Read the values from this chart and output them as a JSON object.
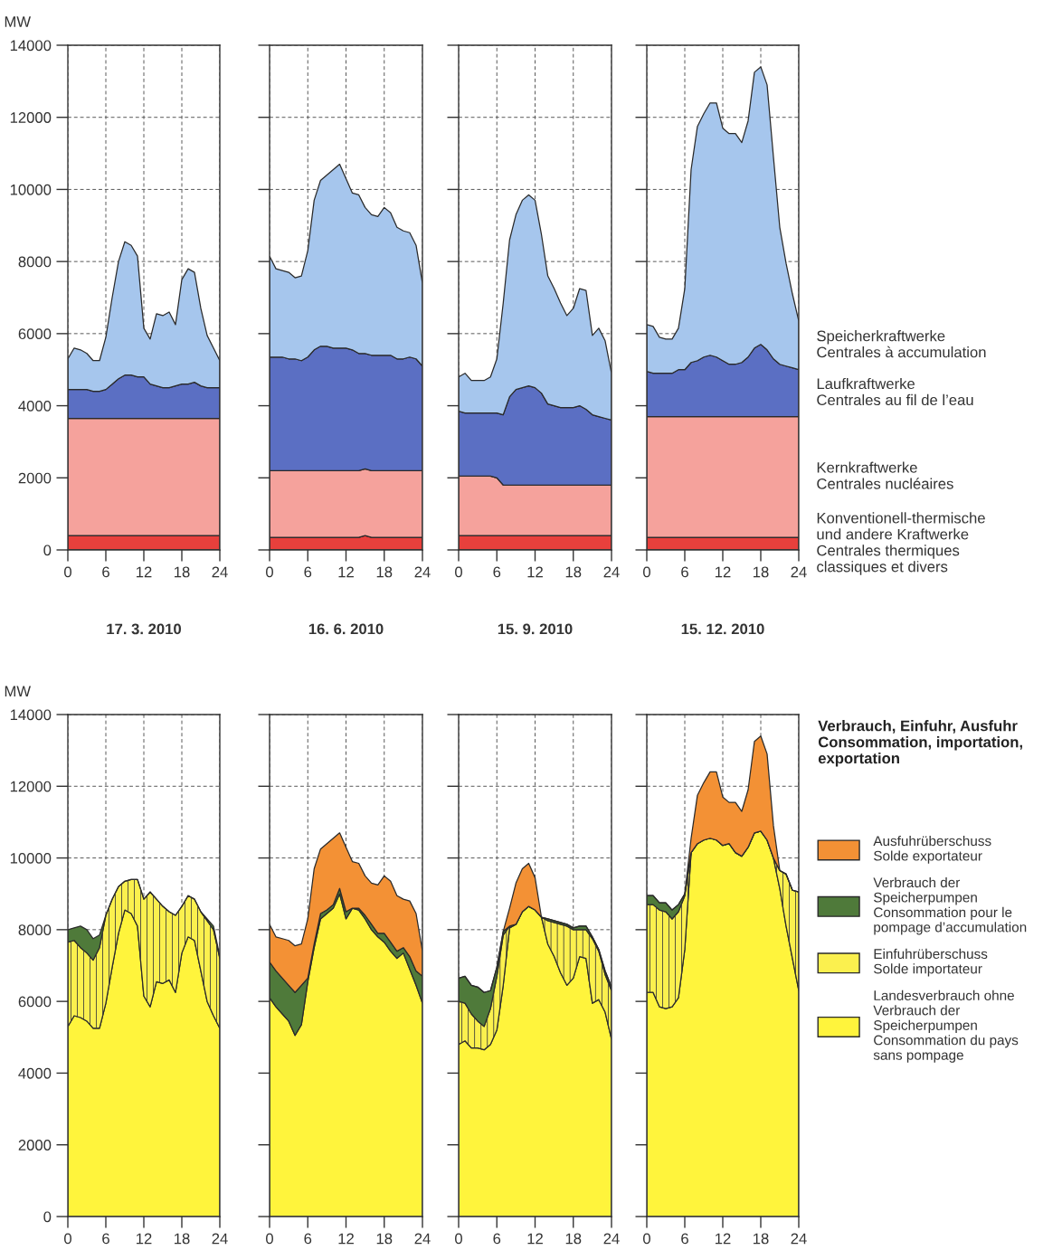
{
  "chart_data": [
    {
      "type": "area",
      "stacked": true,
      "ylabel": "MW",
      "x": [
        0,
        1,
        2,
        3,
        4,
        5,
        6,
        7,
        8,
        9,
        10,
        11,
        12,
        13,
        14,
        15,
        16,
        17,
        18,
        19,
        20,
        21,
        22,
        23,
        24
      ],
      "xlim": [
        0,
        24
      ],
      "xticks": [
        0,
        6,
        12,
        18,
        24
      ],
      "ylim": [
        0,
        14000
      ],
      "yticks": [
        0,
        2000,
        4000,
        6000,
        8000,
        10000,
        12000,
        14000
      ],
      "grid": true,
      "series": [
        {
          "color": "#e8403c",
          "values": [
            400,
            400,
            400,
            400,
            400,
            400,
            400,
            400,
            400,
            400,
            400,
            400,
            400,
            400,
            400,
            400,
            400,
            400,
            400,
            400,
            400,
            400,
            400,
            400,
            400
          ]
        },
        {
          "color": "#f5a29c",
          "values": [
            3250,
            3250,
            3250,
            3250,
            3250,
            3250,
            3250,
            3250,
            3250,
            3250,
            3250,
            3250,
            3250,
            3250,
            3250,
            3250,
            3250,
            3250,
            3250,
            3250,
            3250,
            3250,
            3250,
            3250,
            3250
          ]
        },
        {
          "color": "#5b6fc3",
          "values": [
            800,
            800,
            800,
            800,
            750,
            750,
            800,
            950,
            1100,
            1200,
            1200,
            1150,
            1150,
            950,
            900,
            850,
            850,
            900,
            950,
            950,
            1000,
            900,
            850,
            850,
            850
          ]
        },
        {
          "color": "#a6c6ed",
          "values": [
            850,
            1150,
            1100,
            1000,
            850,
            850,
            1450,
            2400,
            3250,
            3700,
            3600,
            3350,
            1350,
            1250,
            2000,
            2000,
            2100,
            1700,
            2900,
            3200,
            3050,
            2150,
            1450,
            1100,
            750
          ]
        }
      ]
    },
    {
      "type": "area",
      "stacked": true,
      "tick_labels": "x",
      "x": [
        0,
        1,
        2,
        3,
        4,
        5,
        6,
        7,
        8,
        9,
        10,
        11,
        12,
        13,
        14,
        15,
        16,
        17,
        18,
        19,
        20,
        21,
        22,
        23,
        24
      ],
      "xlim": [
        0,
        24
      ],
      "xticks": [
        0,
        6,
        12,
        18,
        24
      ],
      "ylim": [
        0,
        14000
      ],
      "yticks": [
        0,
        2000,
        4000,
        6000,
        8000,
        10000,
        12000,
        14000
      ],
      "grid": true,
      "series": [
        {
          "color": "#e8403c",
          "values": [
            350,
            350,
            350,
            350,
            350,
            350,
            350,
            350,
            350,
            350,
            350,
            350,
            350,
            350,
            350,
            400,
            350,
            350,
            350,
            350,
            350,
            350,
            350,
            350,
            350
          ]
        },
        {
          "color": "#f5a29c",
          "values": [
            1850,
            1850,
            1850,
            1850,
            1850,
            1850,
            1850,
            1850,
            1850,
            1850,
            1850,
            1850,
            1850,
            1850,
            1850,
            1850,
            1850,
            1850,
            1850,
            1850,
            1850,
            1850,
            1850,
            1850,
            1850
          ]
        },
        {
          "color": "#5b6fc3",
          "values": [
            3150,
            3150,
            3150,
            3100,
            3100,
            3050,
            3150,
            3350,
            3450,
            3450,
            3400,
            3400,
            3400,
            3350,
            3250,
            3200,
            3200,
            3200,
            3200,
            3200,
            3100,
            3100,
            3150,
            3100,
            2900
          ]
        },
        {
          "color": "#a6c6ed",
          "values": [
            2800,
            2450,
            2400,
            2400,
            2250,
            2350,
            2950,
            4150,
            4600,
            4750,
            4950,
            5100,
            4700,
            4350,
            4400,
            4050,
            3900,
            3850,
            4100,
            3950,
            3650,
            3550,
            3450,
            3150,
            2300
          ]
        }
      ]
    },
    {
      "type": "area",
      "stacked": true,
      "tick_labels": "x",
      "x": [
        0,
        1,
        2,
        3,
        4,
        5,
        6,
        7,
        8,
        9,
        10,
        11,
        12,
        13,
        14,
        15,
        16,
        17,
        18,
        19,
        20,
        21,
        22,
        23,
        24
      ],
      "xlim": [
        0,
        24
      ],
      "xticks": [
        0,
        6,
        12,
        18,
        24
      ],
      "ylim": [
        0,
        14000
      ],
      "yticks": [
        0,
        2000,
        4000,
        6000,
        8000,
        10000,
        12000,
        14000
      ],
      "grid": true,
      "series": [
        {
          "color": "#e8403c",
          "values": [
            400,
            400,
            400,
            400,
            400,
            400,
            400,
            400,
            400,
            400,
            400,
            400,
            400,
            400,
            400,
            400,
            400,
            400,
            400,
            400,
            400,
            400,
            400,
            400,
            400
          ]
        },
        {
          "color": "#f5a29c",
          "values": [
            1650,
            1650,
            1650,
            1650,
            1650,
            1650,
            1600,
            1400,
            1400,
            1400,
            1400,
            1400,
            1400,
            1400,
            1400,
            1400,
            1400,
            1400,
            1400,
            1400,
            1400,
            1400,
            1400,
            1400,
            1400
          ]
        },
        {
          "color": "#5b6fc3",
          "values": [
            1800,
            1750,
            1750,
            1750,
            1750,
            1750,
            1800,
            1950,
            2450,
            2650,
            2700,
            2750,
            2700,
            2550,
            2250,
            2200,
            2150,
            2150,
            2150,
            2200,
            2100,
            1950,
            1900,
            1850,
            1800
          ]
        },
        {
          "color": "#a6c6ed",
          "values": [
            950,
            1100,
            900,
            900,
            900,
            1000,
            1500,
            3100,
            4350,
            4850,
            5200,
            5300,
            5200,
            4400,
            3550,
            3250,
            2900,
            2550,
            2750,
            3250,
            3300,
            2200,
            2450,
            2150,
            1300
          ]
        }
      ]
    },
    {
      "type": "area",
      "stacked": true,
      "tick_labels": "x",
      "x": [
        0,
        1,
        2,
        3,
        4,
        5,
        6,
        7,
        8,
        9,
        10,
        11,
        12,
        13,
        14,
        15,
        16,
        17,
        18,
        19,
        20,
        21,
        22,
        23,
        24
      ],
      "xlim": [
        0,
        24
      ],
      "xticks": [
        0,
        6,
        12,
        18,
        24
      ],
      "ylim": [
        0,
        14000
      ],
      "yticks": [
        0,
        2000,
        4000,
        6000,
        8000,
        10000,
        12000,
        14000
      ],
      "grid": true,
      "series": [
        {
          "name": "Konventionell-thermische\nund andere Kraftwerke\nCentrales thermiques\nclassiques et divers",
          "color": "#e8403c",
          "values": [
            350,
            350,
            350,
            350,
            350,
            350,
            350,
            350,
            350,
            350,
            350,
            350,
            350,
            350,
            350,
            350,
            350,
            350,
            350,
            350,
            350,
            350,
            350,
            350,
            350
          ]
        },
        {
          "name": "Kernkraftwerke\nCentrales nucléaires",
          "color": "#f5a29c",
          "values": [
            3350,
            3350,
            3350,
            3350,
            3350,
            3350,
            3350,
            3350,
            3350,
            3350,
            3350,
            3350,
            3350,
            3350,
            3350,
            3350,
            3350,
            3350,
            3350,
            3350,
            3350,
            3350,
            3350,
            3350,
            3350
          ]
        },
        {
          "name": "Laufkraftwerke\nCentrales au fil de l’eau",
          "color": "#5b6fc3",
          "values": [
            1250,
            1200,
            1200,
            1200,
            1200,
            1300,
            1300,
            1500,
            1550,
            1650,
            1700,
            1650,
            1550,
            1450,
            1450,
            1500,
            1650,
            1900,
            2000,
            1850,
            1600,
            1450,
            1400,
            1350,
            1300
          ]
        },
        {
          "name": "Speicherkraftwerke\nCentrales à accumulation",
          "color": "#a6c6ed",
          "values": [
            1300,
            1300,
            1000,
            950,
            950,
            1150,
            2250,
            5350,
            6500,
            6750,
            7000,
            7050,
            6450,
            6400,
            6400,
            6100,
            6550,
            7650,
            7700,
            7350,
            5600,
            3800,
            2850,
            2050,
            1350
          ]
        }
      ]
    },
    {
      "type": "area",
      "stacked": true,
      "title": "17. 3. 2010",
      "ylabel": "MW",
      "x": [
        0,
        1,
        2,
        3,
        4,
        5,
        6,
        7,
        8,
        9,
        10,
        11,
        12,
        13,
        14,
        15,
        16,
        17,
        18,
        19,
        20,
        21,
        22,
        23,
        24
      ],
      "xlim": [
        0,
        24
      ],
      "xticks": [
        0,
        6,
        12,
        18,
        24
      ],
      "ylim": [
        0,
        14000
      ],
      "yticks": [
        0,
        2000,
        4000,
        6000,
        8000,
        10000,
        12000,
        14000
      ],
      "grid": true,
      "series": [
        {
          "color": "#fff43c",
          "values": [
            5300,
            5600,
            5550,
            5450,
            5250,
            5250,
            5950,
            6950,
            7900,
            8550,
            8450,
            8100,
            6150,
            5850,
            6550,
            6500,
            6600,
            6250,
            7350,
            7800,
            7700,
            6850,
            6000,
            5600,
            5250
          ]
        },
        {
          "color": "#fbf04e",
          "values": [
            2350,
            2100,
            1950,
            1900,
            1900,
            2250,
            2450,
            1900,
            1300,
            800,
            950,
            1300,
            2700,
            3200,
            2300,
            2150,
            1900,
            2150,
            1300,
            1150,
            1150,
            1650,
            2250,
            2400,
            1950
          ]
        },
        {
          "color": "#4f7a3a",
          "values": [
            350,
            350,
            600,
            650,
            600,
            350,
            0,
            0,
            0,
            0,
            0,
            0,
            0,
            0,
            0,
            0,
            0,
            0,
            0,
            0,
            0,
            0,
            50,
            100,
            50
          ]
        }
      ]
    },
    {
      "type": "area",
      "stacked": true,
      "title": "16. 6. 2010",
      "tick_labels": "x",
      "x": [
        0,
        1,
        2,
        3,
        4,
        5,
        6,
        7,
        8,
        9,
        10,
        11,
        12,
        13,
        14,
        15,
        16,
        17,
        18,
        19,
        20,
        21,
        22,
        23,
        24
      ],
      "xlim": [
        0,
        24
      ],
      "xticks": [
        0,
        6,
        12,
        18,
        24
      ],
      "ylim": [
        0,
        14000
      ],
      "yticks": [
        0,
        2000,
        4000,
        6000,
        8000,
        10000,
        12000,
        14000
      ],
      "grid": true,
      "series": [
        {
          "color": "#fff43c",
          "values": [
            6100,
            5850,
            5650,
            5450,
            5050,
            5350,
            6550,
            7500,
            8300,
            8450,
            8600,
            9000,
            8300,
            8600,
            8550,
            8300,
            8000,
            7800,
            7650,
            7400,
            7200,
            7350,
            6900,
            6450,
            5950
          ]
        },
        {
          "color": "#4f7a3a",
          "values": [
            1000,
            1000,
            1000,
            1000,
            1200,
            1100,
            100,
            100,
            150,
            100,
            100,
            150,
            200,
            0,
            50,
            100,
            150,
            100,
            250,
            250,
            200,
            150,
            350,
            400,
            750
          ]
        },
        {
          "color": "#f39135",
          "values": [
            1050,
            950,
            1100,
            1250,
            1300,
            1150,
            1650,
            2100,
            1800,
            1850,
            1850,
            1550,
            1800,
            1300,
            1250,
            1100,
            1150,
            1350,
            1600,
            1700,
            1550,
            1350,
            1550,
            1600,
            700
          ]
        }
      ]
    },
    {
      "type": "area",
      "stacked": true,
      "title": "15. 9. 2010",
      "tick_labels": "x",
      "x": [
        0,
        1,
        2,
        3,
        4,
        5,
        6,
        7,
        8,
        9,
        10,
        11,
        12,
        13,
        14,
        15,
        16,
        17,
        18,
        19,
        20,
        21,
        22,
        23,
        24
      ],
      "xlim": [
        0,
        24
      ],
      "xticks": [
        0,
        6,
        12,
        18,
        24
      ],
      "ylim": [
        0,
        14000
      ],
      "yticks": [
        0,
        2000,
        4000,
        6000,
        8000,
        10000,
        12000,
        14000
      ],
      "grid": true,
      "series": [
        {
          "color": "#fff43c",
          "values": [
            4800,
            4900,
            4700,
            4700,
            4650,
            4800,
            5200,
            6450,
            8050,
            8150,
            8500,
            8650,
            8550,
            8350,
            7600,
            7250,
            6800,
            6450,
            6650,
            7250,
            7200,
            5950,
            6050,
            5700,
            4950
          ]
        },
        {
          "color": "#fbf04e",
          "values": [
            1200,
            1050,
            950,
            750,
            650,
            1000,
            1500,
            1400,
            50,
            0,
            0,
            0,
            0,
            0,
            650,
            950,
            1350,
            1650,
            1350,
            750,
            800,
            1800,
            1350,
            1050,
            1350
          ]
        },
        {
          "color": "#4f7a3a",
          "values": [
            650,
            750,
            800,
            950,
            950,
            500,
            250,
            100,
            0,
            0,
            0,
            0,
            0,
            0,
            50,
            50,
            50,
            50,
            50,
            100,
            100,
            50,
            50,
            100,
            100
          ]
        },
        {
          "color": "#f39135",
          "values": [
            0,
            0,
            0,
            0,
            0,
            0,
            0,
            0,
            500,
            1150,
            1200,
            1200,
            900,
            0,
            0,
            0,
            0,
            0,
            0,
            0,
            0,
            0,
            0,
            0,
            0
          ]
        }
      ]
    },
    {
      "type": "area",
      "stacked": true,
      "title": "15. 12. 2010",
      "tick_labels": "x",
      "legend": "right",
      "legend_title": "Verbrauch, Einfuhr, Ausfuhr\nConsommation, importation,\nexportation",
      "x": [
        0,
        1,
        2,
        3,
        4,
        5,
        6,
        7,
        8,
        9,
        10,
        11,
        12,
        13,
        14,
        15,
        16,
        17,
        18,
        19,
        20,
        21,
        22,
        23,
        24
      ],
      "xlim": [
        0,
        24
      ],
      "xticks": [
        0,
        6,
        12,
        18,
        24
      ],
      "ylim": [
        0,
        14000
      ],
      "yticks": [
        0,
        2000,
        4000,
        6000,
        8000,
        10000,
        12000,
        14000
      ],
      "grid": true,
      "series": [
        {
          "name": "Landesverbrauch ohne\nVerbrauch der\nSpeicherpumpen\nConsommation du pays\nsans pompage",
          "color": "#fff43c",
          "values": [
            6250,
            6250,
            5850,
            5800,
            5850,
            6100,
            7450,
            10150,
            10400,
            10500,
            10550,
            10500,
            10350,
            10400,
            10150,
            10050,
            10300,
            10700,
            10750,
            10500,
            10000,
            9150,
            8100,
            7200,
            6300
          ]
        },
        {
          "name": "Einfuhrüberschuss\nSolde importateur",
          "color": "#fbf04e",
          "values": [
            2450,
            2450,
            2700,
            2700,
            2450,
            2400,
            1500,
            0,
            0,
            0,
            0,
            0,
            0,
            0,
            0,
            0,
            0,
            0,
            0,
            0,
            0,
            500,
            1450,
            1900,
            2750
          ]
        },
        {
          "name": "Verbrauch der\nSpeicherpumpen\nConsommation pour le\npompage d’accumulation",
          "color": "#4f7a3a",
          "values": [
            250,
            250,
            200,
            250,
            250,
            200,
            50,
            0,
            0,
            0,
            0,
            0,
            0,
            0,
            0,
            0,
            0,
            0,
            0,
            0,
            0,
            0,
            0,
            0,
            0
          ]
        },
        {
          "name": "Ausfuhrüberschuss\nSolde exportateur",
          "color": "#f39135",
          "values": [
            0,
            0,
            0,
            0,
            0,
            0,
            0,
            400,
            1350,
            1600,
            1850,
            1900,
            1350,
            1150,
            1400,
            1250,
            1600,
            2550,
            2650,
            2400,
            900,
            0,
            0,
            0,
            0
          ]
        }
      ]
    }
  ]
}
